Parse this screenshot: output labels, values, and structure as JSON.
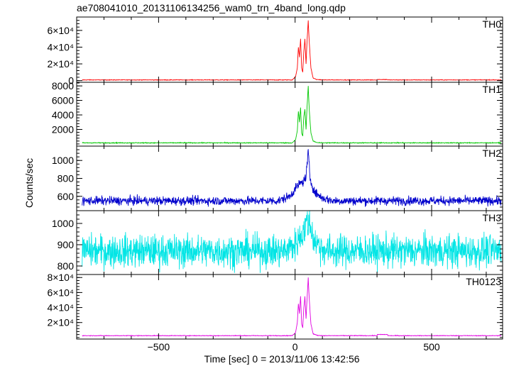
{
  "chart_data": {
    "type": "line",
    "title": "ae708041010_20131106134256_wam0_trn_4band_long.qdp",
    "xlabel": "Time [sec] 0 = 2013/11/06 13:42:56",
    "ylabel": "Counts/sec",
    "xlim": [
      -800,
      760
    ],
    "x_ticks": [
      {
        "value": -500,
        "label": "−500"
      },
      {
        "value": 0,
        "label": "0"
      },
      {
        "value": 500,
        "label": "500"
      }
    ],
    "panels": [
      {
        "name": "TH0",
        "color": "#ff0000",
        "ylim": [
          -2000,
          76000
        ],
        "y_ticks": [
          {
            "value": 0,
            "label": "0"
          },
          {
            "value": 20000,
            "label": "2×10⁴"
          },
          {
            "value": 40000,
            "label": "4×10⁴"
          },
          {
            "value": 60000,
            "label": "6×10⁴"
          }
        ],
        "baseline": 800,
        "noise": 250,
        "burst": [
          {
            "t": -10,
            "v": 800
          },
          {
            "t": 2,
            "v": 5000
          },
          {
            "t": 8,
            "v": 15000
          },
          {
            "t": 12,
            "v": 40000
          },
          {
            "t": 16,
            "v": 28000
          },
          {
            "t": 20,
            "v": 50000
          },
          {
            "t": 24,
            "v": 15000
          },
          {
            "t": 28,
            "v": 10000
          },
          {
            "t": 32,
            "v": 35000
          },
          {
            "t": 36,
            "v": 50000
          },
          {
            "t": 40,
            "v": 20000
          },
          {
            "t": 44,
            "v": 48000
          },
          {
            "t": 48,
            "v": 72000
          },
          {
            "t": 52,
            "v": 45000
          },
          {
            "t": 58,
            "v": 15000
          },
          {
            "t": 66,
            "v": 3000
          },
          {
            "t": 80,
            "v": 1200
          },
          {
            "t": 100,
            "v": 800
          }
        ]
      },
      {
        "name": "TH1",
        "color": "#00c800",
        "ylim": [
          -300,
          8500
        ],
        "y_ticks": [
          {
            "value": 2000,
            "label": "2000"
          },
          {
            "value": 4000,
            "label": "4000"
          },
          {
            "value": 6000,
            "label": "6000"
          },
          {
            "value": 8000,
            "label": "8000"
          }
        ],
        "baseline": 150,
        "noise": 40,
        "burst": [
          {
            "t": -10,
            "v": 150
          },
          {
            "t": 2,
            "v": 600
          },
          {
            "t": 8,
            "v": 1800
          },
          {
            "t": 12,
            "v": 4500
          },
          {
            "t": 16,
            "v": 3000
          },
          {
            "t": 20,
            "v": 5000
          },
          {
            "t": 24,
            "v": 1500
          },
          {
            "t": 28,
            "v": 1100
          },
          {
            "t": 32,
            "v": 3800
          },
          {
            "t": 36,
            "v": 4800
          },
          {
            "t": 40,
            "v": 2000
          },
          {
            "t": 44,
            "v": 5200
          },
          {
            "t": 48,
            "v": 8000
          },
          {
            "t": 52,
            "v": 4600
          },
          {
            "t": 58,
            "v": 1500
          },
          {
            "t": 66,
            "v": 400
          },
          {
            "t": 80,
            "v": 200
          },
          {
            "t": 100,
            "v": 150
          }
        ]
      },
      {
        "name": "TH2",
        "color": "#0000cc",
        "ylim": [
          440,
          1160
        ],
        "y_ticks": [
          {
            "value": 600,
            "label": "600"
          },
          {
            "value": 800,
            "label": "800"
          },
          {
            "value": 1000,
            "label": "1000"
          }
        ],
        "baseline": 550,
        "noise": 35,
        "burst": [
          {
            "t": -60,
            "v": 550
          },
          {
            "t": -20,
            "v": 600
          },
          {
            "t": 0,
            "v": 680
          },
          {
            "t": 15,
            "v": 740
          },
          {
            "t": 30,
            "v": 760
          },
          {
            "t": 40,
            "v": 820
          },
          {
            "t": 48,
            "v": 1100
          },
          {
            "t": 55,
            "v": 800
          },
          {
            "t": 70,
            "v": 650
          },
          {
            "t": 100,
            "v": 580
          },
          {
            "t": 140,
            "v": 550
          }
        ]
      },
      {
        "name": "TH3",
        "color": "#00e5e5",
        "ylim": [
          760,
          1060
        ],
        "y_ticks": [
          {
            "value": 800,
            "label": "800"
          },
          {
            "value": 900,
            "label": "900"
          },
          {
            "value": 1000,
            "label": "1000"
          }
        ],
        "baseline": 870,
        "noise": 55,
        "burst": [
          {
            "t": -40,
            "v": 870
          },
          {
            "t": 0,
            "v": 900
          },
          {
            "t": 30,
            "v": 960
          },
          {
            "t": 45,
            "v": 1010
          },
          {
            "t": 55,
            "v": 990
          },
          {
            "t": 70,
            "v": 920
          },
          {
            "t": 100,
            "v": 880
          },
          {
            "t": 130,
            "v": 870
          }
        ]
      },
      {
        "name": "TH0123",
        "color": "#e000e0",
        "ylim": [
          -2000,
          84000
        ],
        "y_ticks": [
          {
            "value": 20000,
            "label": "2×10⁴"
          },
          {
            "value": 40000,
            "label": "4×10⁴"
          },
          {
            "value": 60000,
            "label": "6×10⁴"
          },
          {
            "value": 80000,
            "label": "8×10⁴"
          }
        ],
        "baseline": 2500,
        "noise": 300,
        "burst": [
          {
            "t": -10,
            "v": 2500
          },
          {
            "t": 2,
            "v": 7000
          },
          {
            "t": 8,
            "v": 20000
          },
          {
            "t": 12,
            "v": 45000
          },
          {
            "t": 16,
            "v": 32000
          },
          {
            "t": 20,
            "v": 55000
          },
          {
            "t": 24,
            "v": 18000
          },
          {
            "t": 28,
            "v": 13000
          },
          {
            "t": 32,
            "v": 40000
          },
          {
            "t": 36,
            "v": 55000
          },
          {
            "t": 40,
            "v": 25000
          },
          {
            "t": 44,
            "v": 52000
          },
          {
            "t": 48,
            "v": 80000
          },
          {
            "t": 52,
            "v": 50000
          },
          {
            "t": 58,
            "v": 18000
          },
          {
            "t": 66,
            "v": 5000
          },
          {
            "t": 80,
            "v": 3000
          },
          {
            "t": 100,
            "v": 2500
          }
        ]
      }
    ]
  }
}
